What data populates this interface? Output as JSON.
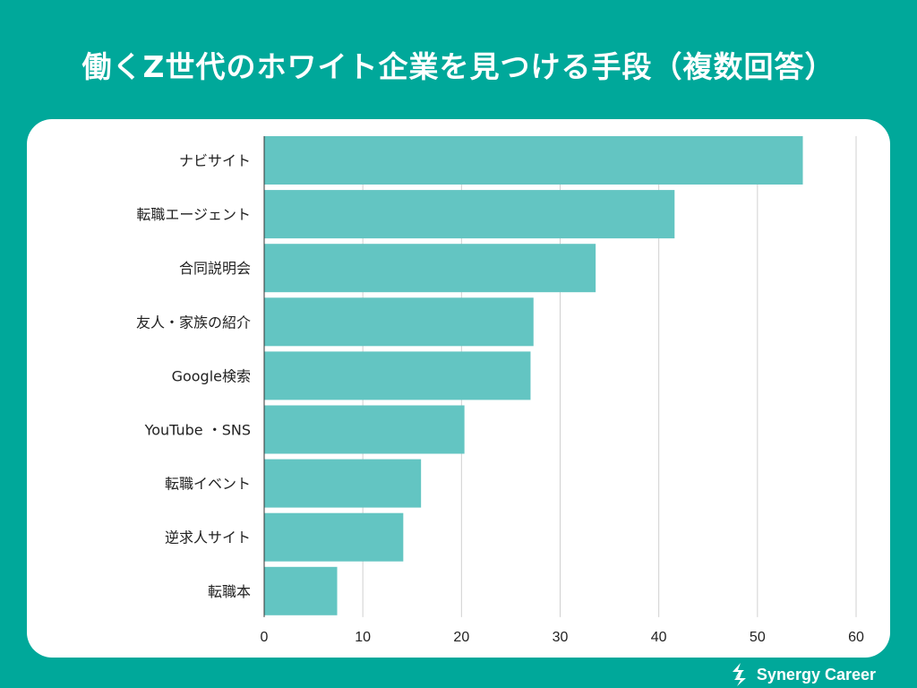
{
  "title": "働くZ世代のホワイト企業を見つける手段（複数回答）",
  "brand": {
    "name": "Synergy Career",
    "icon": "synergy-logo-icon"
  },
  "colors": {
    "background": "#00a89a",
    "bar": "#63c5c2",
    "grid": "#d0d0d0",
    "axis": "#333333",
    "text": "#222222"
  },
  "chart_data": {
    "type": "bar",
    "orientation": "horizontal",
    "title": "働くZ世代のホワイト企業を見つける手段（複数回答）",
    "xlabel": "",
    "ylabel": "",
    "xlim": [
      0,
      60
    ],
    "xticks": [
      0,
      10,
      20,
      30,
      40,
      50,
      60
    ],
    "grid": true,
    "legend": "none",
    "categories": [
      "ナビサイト",
      "転職エージェント",
      "合同説明会",
      "友人・家族の紹介",
      "Google検索",
      "YouTube ・SNS",
      "転職イベント",
      "逆求人サイト",
      "転職本"
    ],
    "values": [
      54.6,
      41.6,
      33.6,
      27.3,
      27.0,
      20.3,
      15.9,
      14.1,
      7.4
    ]
  }
}
